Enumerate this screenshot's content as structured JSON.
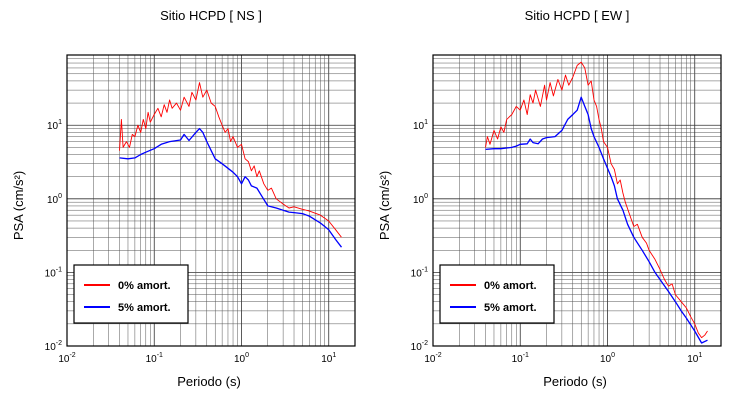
{
  "chart_data": [
    {
      "type": "line",
      "title": "Sitio HCPD [ NS ]",
      "xlabel": "Periodo (s)",
      "ylabel": "PSA (cm/s²)",
      "x_scale": "log",
      "y_scale": "log",
      "xlim": [
        0.01,
        20
      ],
      "ylim": [
        0.01,
        90
      ],
      "x_ticks": [
        "10-2",
        "10-1",
        "100",
        "101"
      ],
      "y_ticks": [
        "10-2",
        "10-1",
        "100",
        "101"
      ],
      "grid": true,
      "legend_position": "bottom-left",
      "series": [
        {
          "name": "0% amort.",
          "color": "#ff0000",
          "points": [
            [
              0.04,
              4.5
            ],
            [
              0.042,
              12
            ],
            [
              0.044,
              5
            ],
            [
              0.048,
              6
            ],
            [
              0.052,
              5
            ],
            [
              0.056,
              7.5
            ],
            [
              0.06,
              7
            ],
            [
              0.065,
              10
            ],
            [
              0.07,
              8
            ],
            [
              0.075,
              12
            ],
            [
              0.08,
              9
            ],
            [
              0.085,
              15
            ],
            [
              0.09,
              11
            ],
            [
              0.1,
              14
            ],
            [
              0.11,
              17
            ],
            [
              0.12,
              13
            ],
            [
              0.13,
              19
            ],
            [
              0.14,
              15
            ],
            [
              0.15,
              22
            ],
            [
              0.16,
              17
            ],
            [
              0.18,
              20
            ],
            [
              0.2,
              16
            ],
            [
              0.22,
              24
            ],
            [
              0.25,
              18
            ],
            [
              0.27,
              28
            ],
            [
              0.3,
              22
            ],
            [
              0.33,
              38
            ],
            [
              0.36,
              24
            ],
            [
              0.4,
              30
            ],
            [
              0.45,
              20
            ],
            [
              0.5,
              18
            ],
            [
              0.55,
              13
            ],
            [
              0.6,
              10
            ],
            [
              0.65,
              8
            ],
            [
              0.7,
              9
            ],
            [
              0.75,
              6
            ],
            [
              0.8,
              7
            ],
            [
              0.9,
              5
            ],
            [
              1.0,
              5.5
            ],
            [
              1.1,
              3.5
            ],
            [
              1.2,
              3.2
            ],
            [
              1.3,
              2.4
            ],
            [
              1.4,
              2.8
            ],
            [
              1.5,
              2.0
            ],
            [
              1.6,
              2.4
            ],
            [
              1.8,
              1.6
            ],
            [
              2.0,
              1.3
            ],
            [
              2.2,
              1.4
            ],
            [
              2.5,
              1.0
            ],
            [
              3.0,
              0.85
            ],
            [
              3.5,
              0.75
            ],
            [
              4.0,
              0.78
            ],
            [
              5.0,
              0.72
            ],
            [
              6.0,
              0.68
            ],
            [
              8.0,
              0.6
            ],
            [
              10.0,
              0.5
            ],
            [
              12.0,
              0.38
            ],
            [
              14.0,
              0.3
            ]
          ]
        },
        {
          "name": "5% amort.",
          "color": "#0000ff",
          "points": [
            [
              0.04,
              3.6
            ],
            [
              0.05,
              3.5
            ],
            [
              0.06,
              3.6
            ],
            [
              0.07,
              4.0
            ],
            [
              0.08,
              4.3
            ],
            [
              0.1,
              4.8
            ],
            [
              0.12,
              5.5
            ],
            [
              0.15,
              6.0
            ],
            [
              0.2,
              6.3
            ],
            [
              0.22,
              7.5
            ],
            [
              0.25,
              6.2
            ],
            [
              0.3,
              8.0
            ],
            [
              0.33,
              9.0
            ],
            [
              0.36,
              8.0
            ],
            [
              0.4,
              6.0
            ],
            [
              0.45,
              4.5
            ],
            [
              0.5,
              3.5
            ],
            [
              0.6,
              3.0
            ],
            [
              0.7,
              2.6
            ],
            [
              0.8,
              2.3
            ],
            [
              0.9,
              2.0
            ],
            [
              1.0,
              1.6
            ],
            [
              1.1,
              2.0
            ],
            [
              1.2,
              1.8
            ],
            [
              1.3,
              1.5
            ],
            [
              1.5,
              1.4
            ],
            [
              1.7,
              1.1
            ],
            [
              2.0,
              0.8
            ],
            [
              2.5,
              0.75
            ],
            [
              3.0,
              0.7
            ],
            [
              3.5,
              0.66
            ],
            [
              4.0,
              0.65
            ],
            [
              5.0,
              0.63
            ],
            [
              6.0,
              0.58
            ],
            [
              8.0,
              0.47
            ],
            [
              10.0,
              0.38
            ],
            [
              12.0,
              0.28
            ],
            [
              14.0,
              0.22
            ]
          ]
        }
      ]
    },
    {
      "type": "line",
      "title": "Sitio HCPD [ EW ]",
      "xlabel": "Periodo (s)",
      "ylabel": "PSA (cm/s²)",
      "x_scale": "log",
      "y_scale": "log",
      "xlim": [
        0.01,
        20
      ],
      "ylim": [
        0.01,
        90
      ],
      "x_ticks": [
        "10-2",
        "10-1",
        "100",
        "101"
      ],
      "y_ticks": [
        "10-2",
        "10-1",
        "100",
        "101"
      ],
      "grid": true,
      "legend_position": "bottom-left",
      "series": [
        {
          "name": "0% amort.",
          "color": "#ff0000",
          "points": [
            [
              0.04,
              5.0
            ],
            [
              0.042,
              7.0
            ],
            [
              0.045,
              5.5
            ],
            [
              0.05,
              8.5
            ],
            [
              0.055,
              6.5
            ],
            [
              0.06,
              9.5
            ],
            [
              0.065,
              8
            ],
            [
              0.07,
              12
            ],
            [
              0.08,
              14
            ],
            [
              0.09,
              18
            ],
            [
              0.1,
              16
            ],
            [
              0.11,
              22
            ],
            [
              0.12,
              14
            ],
            [
              0.13,
              26
            ],
            [
              0.14,
              20
            ],
            [
              0.15,
              30
            ],
            [
              0.17,
              18
            ],
            [
              0.19,
              35
            ],
            [
              0.2,
              22
            ],
            [
              0.22,
              38
            ],
            [
              0.24,
              25
            ],
            [
              0.27,
              42
            ],
            [
              0.3,
              30
            ],
            [
              0.33,
              48
            ],
            [
              0.36,
              35
            ],
            [
              0.4,
              45
            ],
            [
              0.45,
              65
            ],
            [
              0.5,
              72
            ],
            [
              0.55,
              60
            ],
            [
              0.6,
              35
            ],
            [
              0.65,
              40
            ],
            [
              0.7,
              22
            ],
            [
              0.75,
              18
            ],
            [
              0.8,
              12
            ],
            [
              0.85,
              9
            ],
            [
              0.9,
              6
            ],
            [
              1.0,
              5
            ],
            [
              1.1,
              3.0
            ],
            [
              1.2,
              2.5
            ],
            [
              1.3,
              1.6
            ],
            [
              1.4,
              1.8
            ],
            [
              1.5,
              1.2
            ],
            [
              1.6,
              0.9
            ],
            [
              1.8,
              0.6
            ],
            [
              2.0,
              0.42
            ],
            [
              2.2,
              0.45
            ],
            [
              2.5,
              0.3
            ],
            [
              2.8,
              0.25
            ],
            [
              3.0,
              0.2
            ],
            [
              3.5,
              0.15
            ],
            [
              4.0,
              0.11
            ],
            [
              4.5,
              0.08
            ],
            [
              5.0,
              0.065
            ],
            [
              5.5,
              0.07
            ],
            [
              6.0,
              0.05
            ],
            [
              7.0,
              0.04
            ],
            [
              8.0,
              0.033
            ],
            [
              9.0,
              0.025
            ],
            [
              10.0,
              0.02
            ],
            [
              11.0,
              0.015
            ],
            [
              12.0,
              0.013
            ],
            [
              13.0,
              0.014
            ],
            [
              14.0,
              0.016
            ]
          ]
        },
        {
          "name": "5% amort.",
          "color": "#0000ff",
          "points": [
            [
              0.04,
              4.7
            ],
            [
              0.05,
              4.8
            ],
            [
              0.06,
              4.8
            ],
            [
              0.07,
              4.9
            ],
            [
              0.08,
              5.0
            ],
            [
              0.09,
              5.2
            ],
            [
              0.1,
              5.5
            ],
            [
              0.12,
              5.6
            ],
            [
              0.13,
              6.5
            ],
            [
              0.14,
              5.8
            ],
            [
              0.16,
              5.6
            ],
            [
              0.18,
              6.5
            ],
            [
              0.2,
              6.8
            ],
            [
              0.25,
              7.0
            ],
            [
              0.3,
              8.5
            ],
            [
              0.35,
              12
            ],
            [
              0.4,
              14
            ],
            [
              0.45,
              16
            ],
            [
              0.5,
              24
            ],
            [
              0.55,
              18
            ],
            [
              0.6,
              14
            ],
            [
              0.65,
              9
            ],
            [
              0.7,
              7
            ],
            [
              0.8,
              5
            ],
            [
              0.9,
              3.5
            ],
            [
              1.0,
              2.6
            ],
            [
              1.1,
              2.0
            ],
            [
              1.2,
              1.5
            ],
            [
              1.3,
              1.0
            ],
            [
              1.5,
              0.7
            ],
            [
              1.7,
              0.45
            ],
            [
              2.0,
              0.3
            ],
            [
              2.5,
              0.2
            ],
            [
              3.0,
              0.14
            ],
            [
              3.5,
              0.1
            ],
            [
              4.0,
              0.08
            ],
            [
              5.0,
              0.055
            ],
            [
              6.0,
              0.04
            ],
            [
              7.0,
              0.03
            ],
            [
              8.0,
              0.024
            ],
            [
              10.0,
              0.016
            ],
            [
              12.0,
              0.011
            ],
            [
              14.0,
              0.012
            ]
          ]
        }
      ]
    }
  ]
}
